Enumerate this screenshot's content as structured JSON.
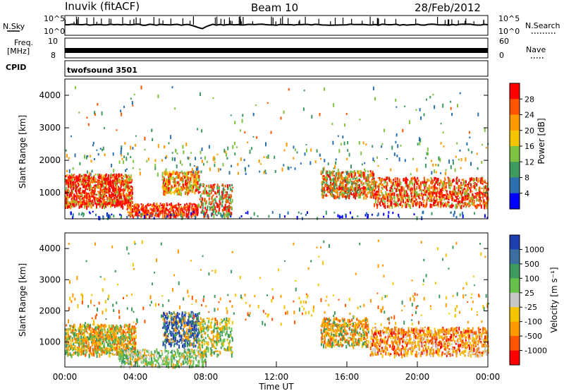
{
  "header": {
    "station": "Inuvik (fitACF)",
    "beam": "Beam 10",
    "date": "28/Feb/2012"
  },
  "top_panels": {
    "nsky_label": "N.Sky",
    "nsearch_label": "N.Search",
    "freq_label_1": "Freq.",
    "freq_label_2": "[MHz]",
    "nave_label": "Nave",
    "cpid_label": "CPID",
    "cpid_value": "twofsound 3501",
    "noise_ticks_left": [
      "10^5",
      "10^0"
    ],
    "noise_ticks_right": [
      "10^5",
      "10^0"
    ],
    "freq_ticks_left": [
      "10",
      "8"
    ],
    "nave_ticks_right": [
      "60",
      "0"
    ]
  },
  "chart_data": [
    {
      "type": "heatmap",
      "title": "",
      "ylabel": "Slant Range [km]",
      "xlabel": "",
      "ylim": [
        200,
        4500
      ],
      "yticks": [
        "4000",
        "3000",
        "2000",
        "1000"
      ],
      "colorbar": {
        "label": "Power [dB]",
        "ticks": [
          "28",
          "24",
          "20",
          "16",
          "12",
          "8",
          "4"
        ],
        "colors": [
          "#ff0000",
          "#ff5500",
          "#ff9900",
          "#f5c400",
          "#7fc241",
          "#3e9a5e",
          "#2a6fb0",
          "#0000ff"
        ]
      }
    },
    {
      "type": "heatmap",
      "title": "",
      "ylabel": "Slant Range [km]",
      "xlabel": "Time UT",
      "ylim": [
        200,
        4500
      ],
      "yticks": [
        "4000",
        "3000",
        "2000",
        "1000"
      ],
      "xticks": [
        "00:00",
        "04:00",
        "08:00",
        "12:00",
        "16:00",
        "20:00",
        "00:00"
      ],
      "colorbar": {
        "label": "Velocity [m s⁻¹]",
        "ticks": [
          "1000",
          "500",
          "100",
          "25",
          "-25",
          "-100",
          "-500",
          "-1000"
        ],
        "colors": [
          "#1f3fb0",
          "#3a6fa0",
          "#3e9a5e",
          "#66c24a",
          "#c8c8c8",
          "#f5c400",
          "#ff9900",
          "#ff5500",
          "#ff0000"
        ]
      }
    }
  ]
}
